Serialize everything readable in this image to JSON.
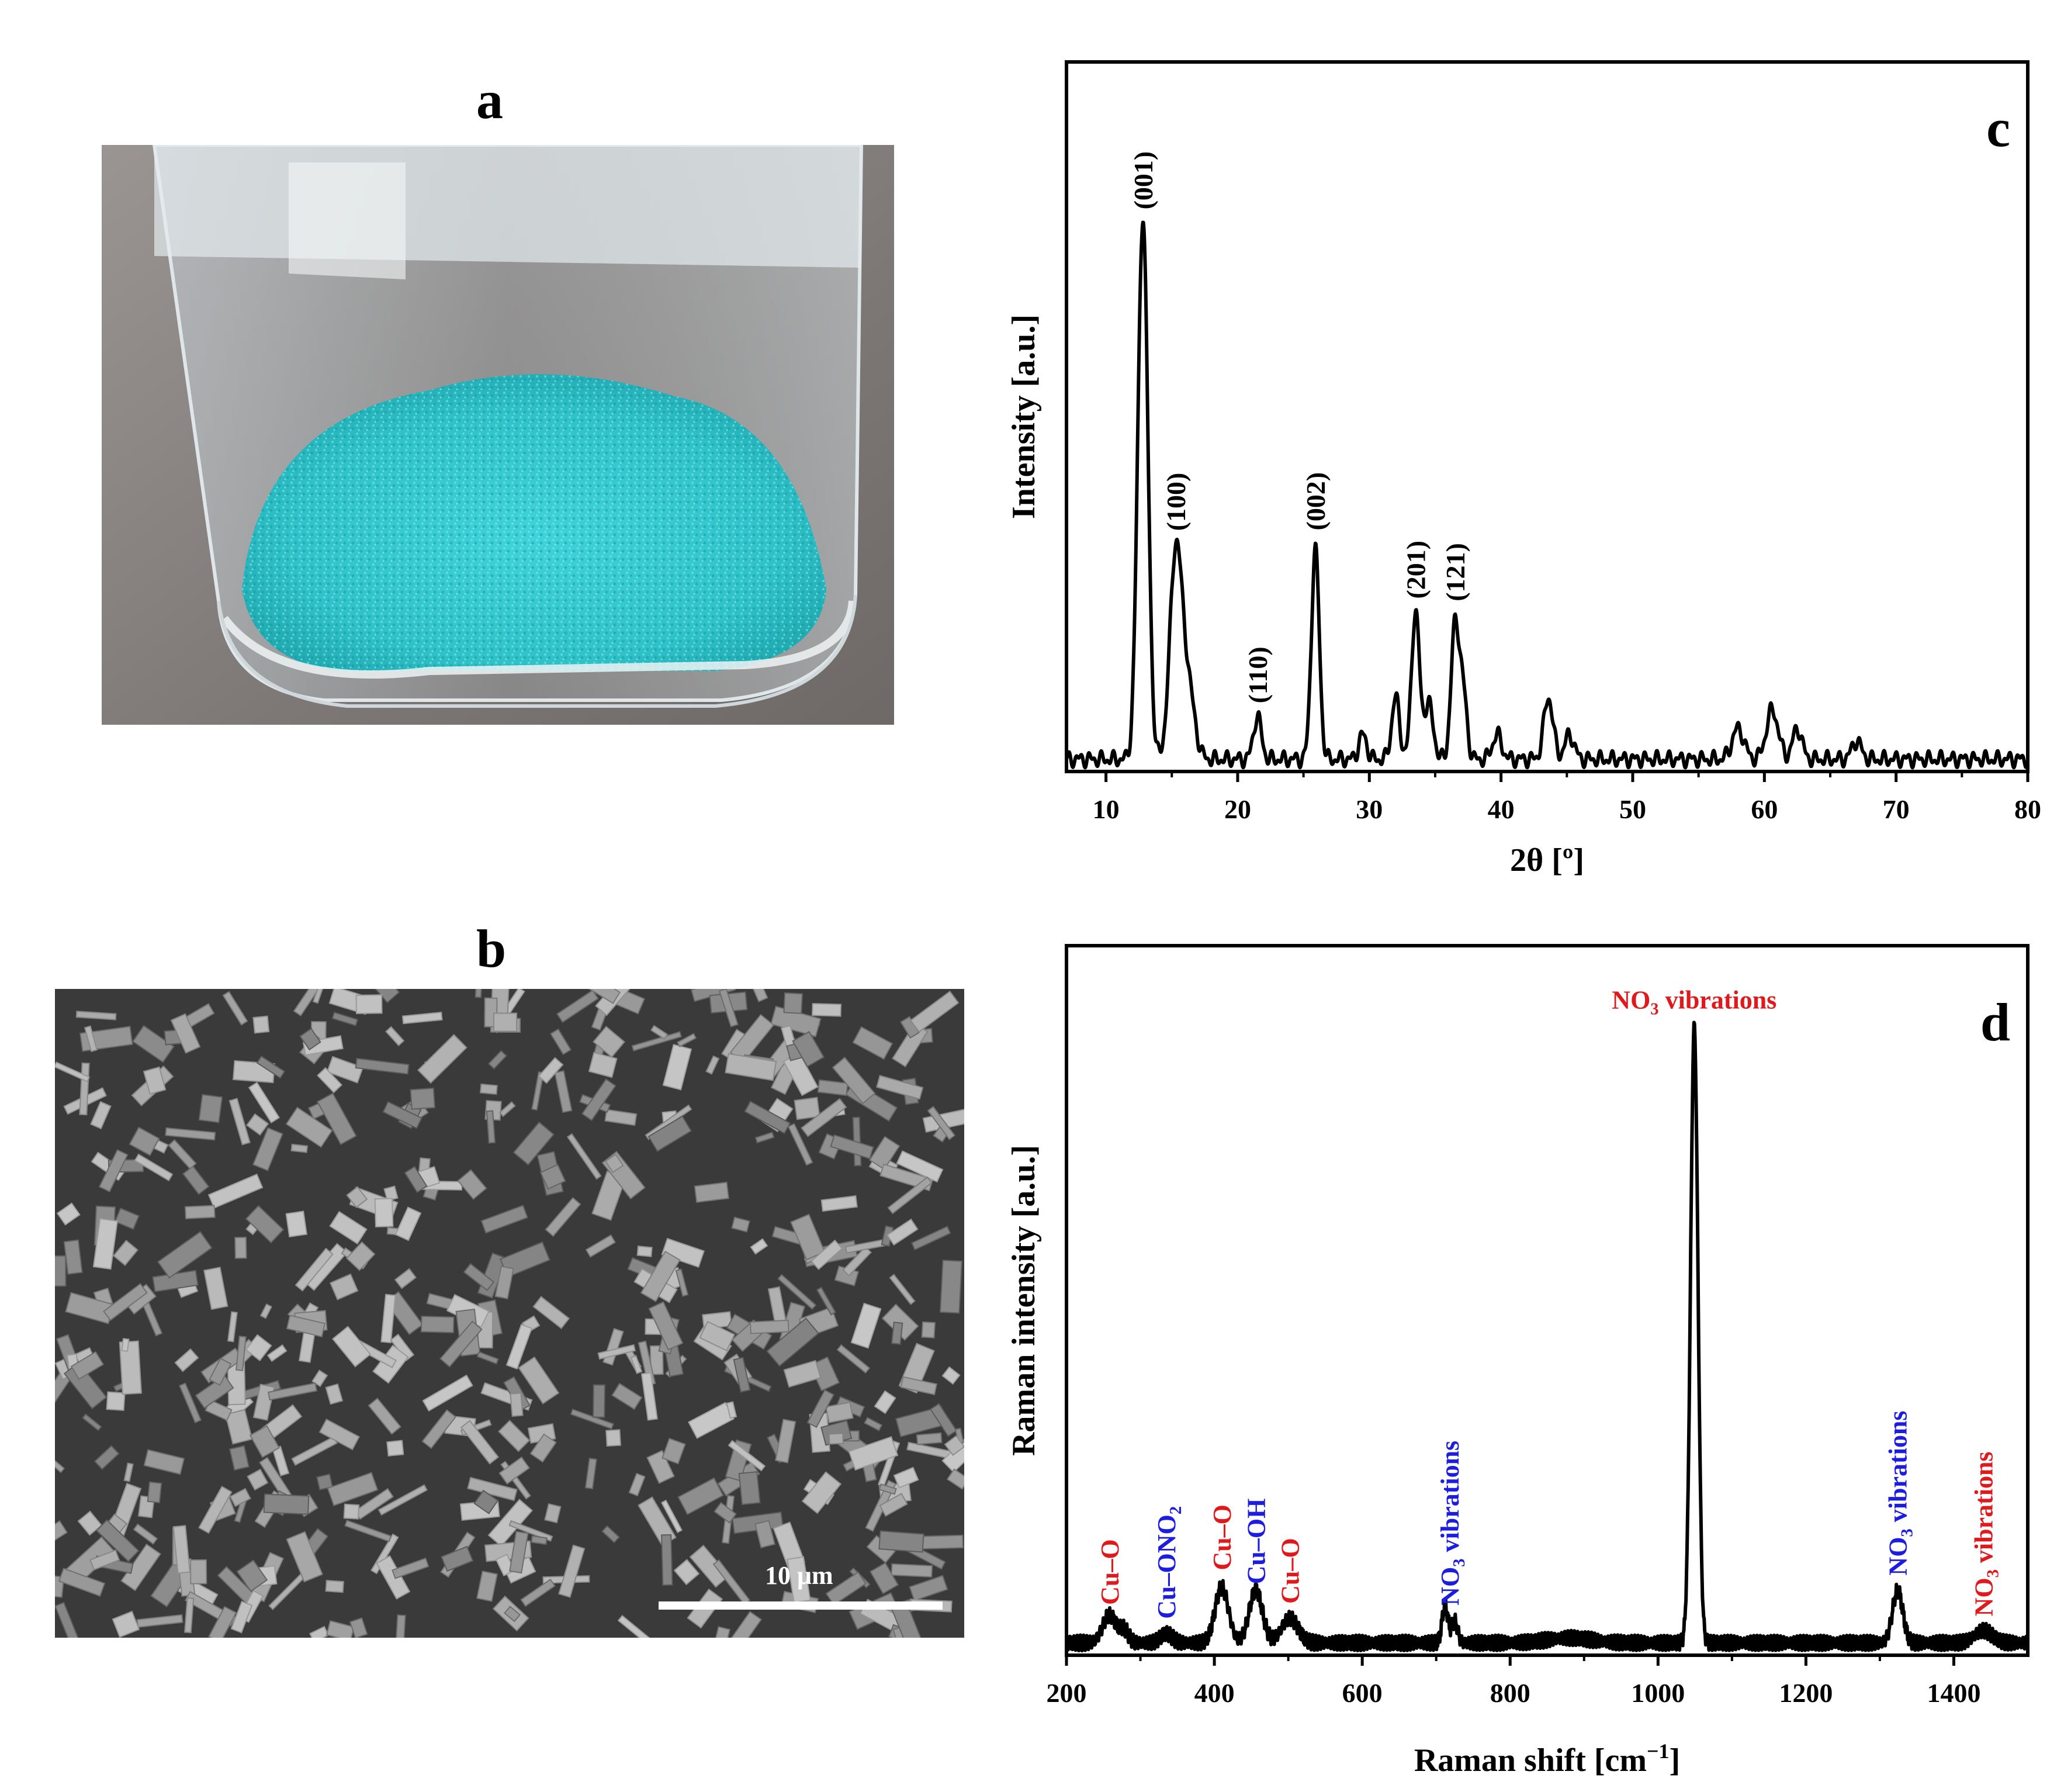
{
  "panels": {
    "a": {
      "letter": "a"
    },
    "b": {
      "letter": "b",
      "scale_bar_label": "10 μm"
    }
  },
  "colors": {
    "powder": "#2fc2c9",
    "photo_background": "#8a8583",
    "sem_background": "#3a3a3a",
    "red_label": "#e0191c",
    "blue_label": "#1d1de0",
    "line": "#000000"
  },
  "chart_data": [
    {
      "panel": "c",
      "type": "line",
      "xlabel": "2θ  [º]",
      "ylabel": "Intensity [a.u.]",
      "xlim": [
        7,
        80
      ],
      "ylim": [
        0,
        1.15
      ],
      "xticks": [
        10,
        20,
        30,
        40,
        50,
        60,
        70,
        80
      ],
      "yticks": [],
      "legend": "none",
      "grid": false,
      "peaks": [
        {
          "x": 12.8,
          "y": 0.88,
          "w": 0.38
        },
        {
          "x": 15.3,
          "y": 0.33,
          "w": 0.45
        },
        {
          "x": 16.2,
          "y": 0.12,
          "w": 0.5
        },
        {
          "x": 21.5,
          "y": 0.07,
          "w": 0.3
        },
        {
          "x": 25.9,
          "y": 0.34,
          "w": 0.3
        },
        {
          "x": 29.5,
          "y": 0.04,
          "w": 0.3
        },
        {
          "x": 32.0,
          "y": 0.1,
          "w": 0.3
        },
        {
          "x": 33.5,
          "y": 0.24,
          "w": 0.3
        },
        {
          "x": 34.5,
          "y": 0.09,
          "w": 0.35
        },
        {
          "x": 36.5,
          "y": 0.21,
          "w": 0.3
        },
        {
          "x": 37.1,
          "y": 0.11,
          "w": 0.3
        },
        {
          "x": 39.7,
          "y": 0.04,
          "w": 0.35
        },
        {
          "x": 43.6,
          "y": 0.1,
          "w": 0.35
        },
        {
          "x": 45.2,
          "y": 0.04,
          "w": 0.35
        },
        {
          "x": 58.0,
          "y": 0.05,
          "w": 0.45
        },
        {
          "x": 60.6,
          "y": 0.08,
          "w": 0.45
        },
        {
          "x": 62.5,
          "y": 0.05,
          "w": 0.35
        },
        {
          "x": 67.0,
          "y": 0.03,
          "w": 0.35
        }
      ],
      "annotations": [
        {
          "x": 12.8,
          "y": 0.88,
          "text": "(001)"
        },
        {
          "x": 15.3,
          "y": 0.33,
          "text": "(100)"
        },
        {
          "x": 21.5,
          "y": 0.07,
          "text": "(110)"
        },
        {
          "x": 25.9,
          "y": 0.34,
          "text": "(002)"
        },
        {
          "x": 33.5,
          "y": 0.24,
          "text": "(201)"
        },
        {
          "x": 36.5,
          "y": 0.21,
          "text": "(121)"
        }
      ],
      "panel_letter": "c"
    },
    {
      "panel": "d",
      "type": "line",
      "xlabel": "Raman shift [cm−1]",
      "ylabel": "Raman intensity [a.u.]",
      "xlim": [
        200,
        1500
      ],
      "ylim": [
        0,
        1.15
      ],
      "xticks": [
        200,
        400,
        600,
        800,
        1000,
        1200,
        1400
      ],
      "yticks": [],
      "legend": "none",
      "grid": false,
      "peaks": [
        {
          "x": 258,
          "y": 0.045,
          "w": 9
        },
        {
          "x": 278,
          "y": 0.02,
          "w": 6
        },
        {
          "x": 335,
          "y": 0.015,
          "w": 8
        },
        {
          "x": 410,
          "y": 0.09,
          "w": 9
        },
        {
          "x": 456,
          "y": 0.085,
          "w": 9
        },
        {
          "x": 502,
          "y": 0.04,
          "w": 11
        },
        {
          "x": 712,
          "y": 0.06,
          "w": 4
        },
        {
          "x": 725,
          "y": 0.035,
          "w": 4
        },
        {
          "x": 880,
          "y": 0.008,
          "w": 30
        },
        {
          "x": 1049,
          "y": 1.0,
          "w": 5
        },
        {
          "x": 1324,
          "y": 0.085,
          "w": 7
        },
        {
          "x": 1440,
          "y": 0.02,
          "w": 12
        }
      ],
      "annotations": [
        {
          "x": 258,
          "y": 0.045,
          "text": "Cu–O",
          "color": "red"
        },
        {
          "x": 335,
          "y": 0.015,
          "text": "Cu–ONO",
          "sub": "2",
          "color": "blue"
        },
        {
          "x": 410,
          "y": 0.09,
          "text": "Cu–O",
          "color": "red"
        },
        {
          "x": 456,
          "y": 0.085,
          "text": "Cu–OH",
          "color": "blue"
        },
        {
          "x": 502,
          "y": 0.04,
          "text": "Cu–O",
          "color": "red"
        },
        {
          "x": 718,
          "y": 0.06,
          "text": "NO",
          "sub": "3",
          "tail": " vibrations",
          "color": "blue"
        },
        {
          "x": 1049,
          "y": 1.0,
          "text": "NO",
          "sub": "3",
          "tail": " vibrations",
          "color": "red",
          "horizontal": true
        },
        {
          "x": 1324,
          "y": 0.085,
          "text": "NO",
          "sub": "3",
          "tail": " vibrations",
          "color": "blue"
        },
        {
          "x": 1440,
          "y": 0.02,
          "text": "NO",
          "sub": "3",
          "tail": " vibrations",
          "color": "red"
        }
      ],
      "panel_letter": "d"
    }
  ]
}
